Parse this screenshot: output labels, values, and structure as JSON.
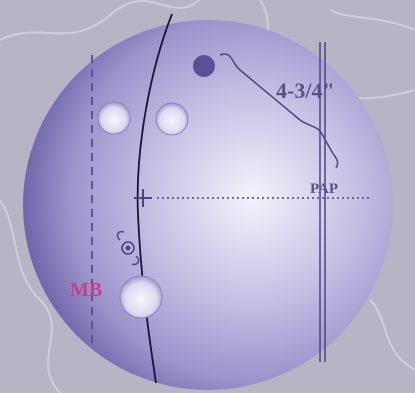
{
  "diagram": {
    "measurement_label": "4-3/4\"",
    "pap_label": "PAP",
    "mb_label": "MB",
    "center_symbol": "+",
    "colors": {
      "background": "#b9b3c6",
      "ball_light": "#f4f2fb",
      "ball_mid": "#a89fd2",
      "ball_dark": "#7066a9",
      "hole_fill": "#e4e1f3",
      "pin_dot": "#5d4f97",
      "mb_text": "#c0408a",
      "label_text": "#5a4f8a",
      "lines": "#4e4580"
    },
    "elements": {
      "holes": [
        "finger-hole-left",
        "finger-hole-right",
        "thumb-hole"
      ],
      "markers": [
        "pin-dot",
        "axis-center-cross",
        "cg-swirl-icon"
      ]
    }
  }
}
